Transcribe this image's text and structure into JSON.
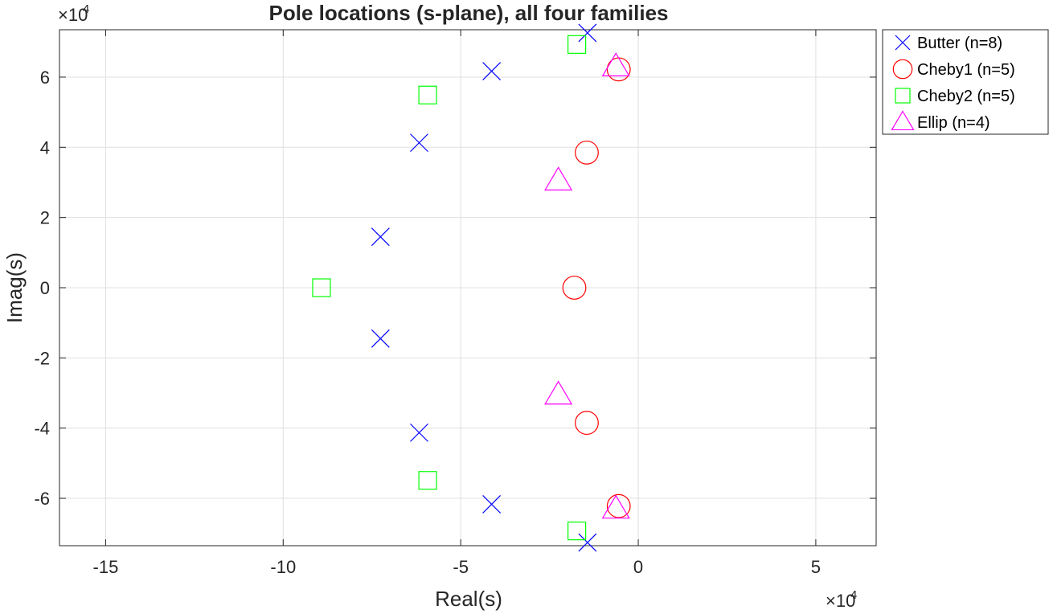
{
  "chart_data": {
    "type": "scatter",
    "title": "Pole locations (s-plane), all four families",
    "xlabel": "Real(s)",
    "ylabel": "Imag(s)",
    "x_exponent_label": "×10",
    "y_exponent_label": "×10",
    "exponent_power": "4",
    "xlim": [
      -16.3,
      6.7
    ],
    "ylim": [
      -7.35,
      7.35
    ],
    "x_ticks": [
      -15,
      -10,
      -5,
      0,
      5
    ],
    "x_tick_labels": [
      "-15",
      "-10",
      "-5",
      "0",
      "5"
    ],
    "y_ticks": [
      -6,
      -4,
      -2,
      0,
      2,
      4,
      6
    ],
    "y_tick_labels": [
      "-6",
      "-4",
      "-2",
      "0",
      "2",
      "4",
      "6"
    ],
    "grid": true,
    "legend_position": "outside-top-right",
    "series": [
      {
        "name": "Butter (n=8)",
        "marker": "x",
        "color": "#0000ff",
        "points": [
          [
            -1.43,
            7.26
          ],
          [
            -4.13,
            6.17
          ],
          [
            -6.17,
            4.13
          ],
          [
            -7.26,
            1.45
          ],
          [
            -7.26,
            -1.45
          ],
          [
            -6.17,
            -4.13
          ],
          [
            -4.13,
            -6.17
          ],
          [
            -1.43,
            -7.26
          ]
        ]
      },
      {
        "name": "Cheby1 (n=5)",
        "marker": "circle",
        "color": "#ff0000",
        "points": [
          [
            -0.55,
            6.22
          ],
          [
            -1.45,
            3.85
          ],
          [
            -1.8,
            0.0
          ],
          [
            -1.45,
            -3.85
          ],
          [
            -0.55,
            -6.22
          ]
        ]
      },
      {
        "name": "Cheby2 (n=5)",
        "marker": "square",
        "color": "#00ff00",
        "points": [
          [
            -1.73,
            6.93
          ],
          [
            -5.93,
            5.49
          ],
          [
            -8.92,
            0.0
          ],
          [
            -5.93,
            -5.49
          ],
          [
            -1.73,
            -6.93
          ]
        ]
      },
      {
        "name": "Ellip (n=4)",
        "marker": "triangle",
        "color": "#ff00ff",
        "points": [
          [
            -0.63,
            6.3
          ],
          [
            -2.25,
            3.05
          ],
          [
            -2.25,
            -3.05
          ],
          [
            -0.63,
            -6.3
          ]
        ]
      }
    ]
  }
}
